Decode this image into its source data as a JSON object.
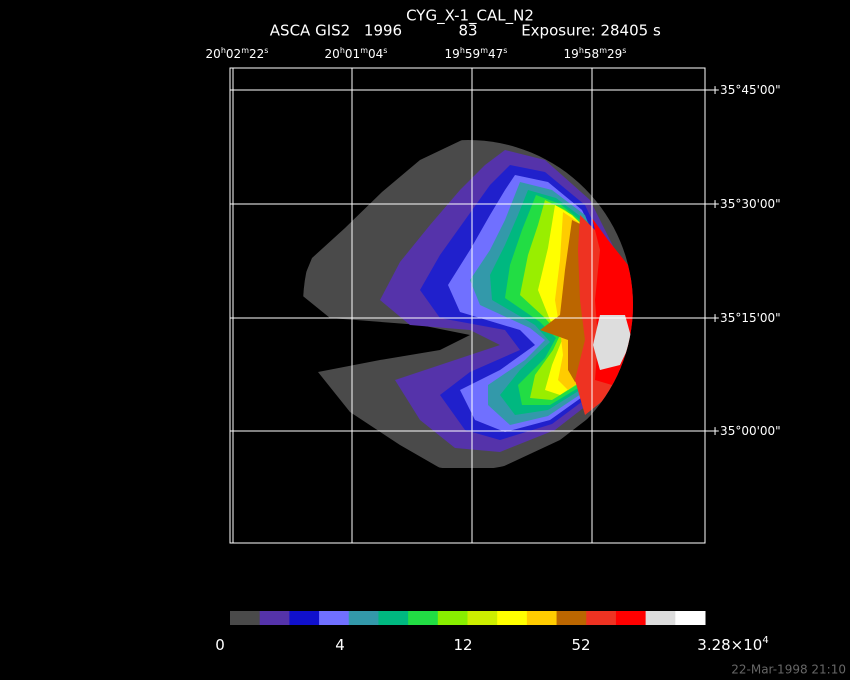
{
  "header": {
    "title": "CYG_X-1_CAL_N2",
    "instrument": "ASCA GIS2",
    "year": "1996",
    "sequence": "83",
    "exposure": "Exposure: 28405 s"
  },
  "ra_labels": [
    [
      "20",
      "h",
      "02",
      "m",
      "22",
      "s"
    ],
    [
      "20",
      "h",
      "01",
      "m",
      "04",
      "s"
    ],
    [
      "19",
      "h",
      "59",
      "m",
      "47",
      "s"
    ],
    [
      "19",
      "h",
      "58",
      "m",
      "29",
      "s"
    ]
  ],
  "dec_labels": [
    "+35°45'00\"",
    "+35°30'00\"",
    "+35°15'00\"",
    "+35°00'00\""
  ],
  "colorbar": {
    "labels": [
      "0",
      "4",
      "12",
      "52"
    ],
    "max_label": {
      "base": "3.28×10",
      "exp": "4"
    }
  },
  "footer": "22-Mar-1998 21:10"
}
